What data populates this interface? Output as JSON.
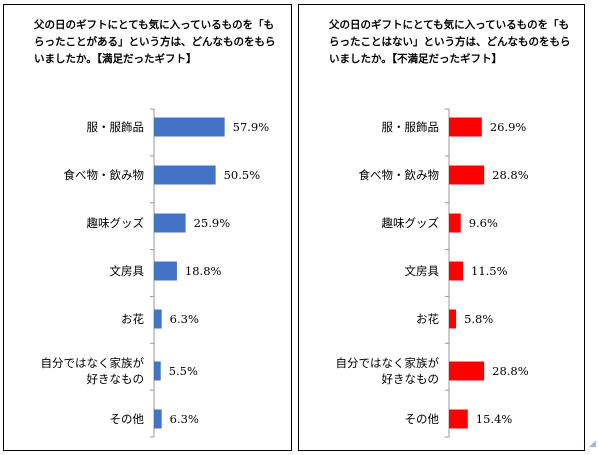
{
  "chart_data": [
    {
      "type": "bar",
      "orientation": "horizontal",
      "title": "父の日のギフトにとても気に入っているものを「もらったことがある」という方は、どんなものをもらいましたか。【満足だったギフト】",
      "categories": [
        [
          "服・服飾品"
        ],
        [
          "食べ物・飲み物"
        ],
        [
          "趣味グッズ"
        ],
        [
          "文房具"
        ],
        [
          "お花"
        ],
        [
          "自分ではなく家族が",
          "好きなもの"
        ],
        [
          "その他"
        ]
      ],
      "values": [
        57.9,
        50.5,
        25.9,
        18.8,
        6.3,
        5.5,
        6.3
      ],
      "value_labels": [
        "57.9%",
        "50.5%",
        "25.9%",
        "18.8%",
        "6.3%",
        "5.5%",
        "6.3%"
      ],
      "bar_color": "#4472c4"
    },
    {
      "type": "bar",
      "orientation": "horizontal",
      "title": "父の日のギフトにとても気に入っているものを「もらったことはない」という方は、どんなものをもらいましたか。【不満足だったギフト】",
      "categories": [
        [
          "服・服飾品"
        ],
        [
          "食べ物・飲み物"
        ],
        [
          "趣味グッズ"
        ],
        [
          "文房具"
        ],
        [
          "お花"
        ],
        [
          "自分ではなく家族が",
          "好きなもの"
        ],
        [
          "その他"
        ]
      ],
      "values": [
        26.9,
        28.8,
        9.6,
        11.5,
        5.8,
        28.8,
        15.4
      ],
      "value_labels": [
        "26.9%",
        "28.8%",
        "9.6%",
        "11.5%",
        "5.8%",
        "28.8%",
        "15.4%"
      ],
      "bar_color": "#ff0000"
    }
  ]
}
